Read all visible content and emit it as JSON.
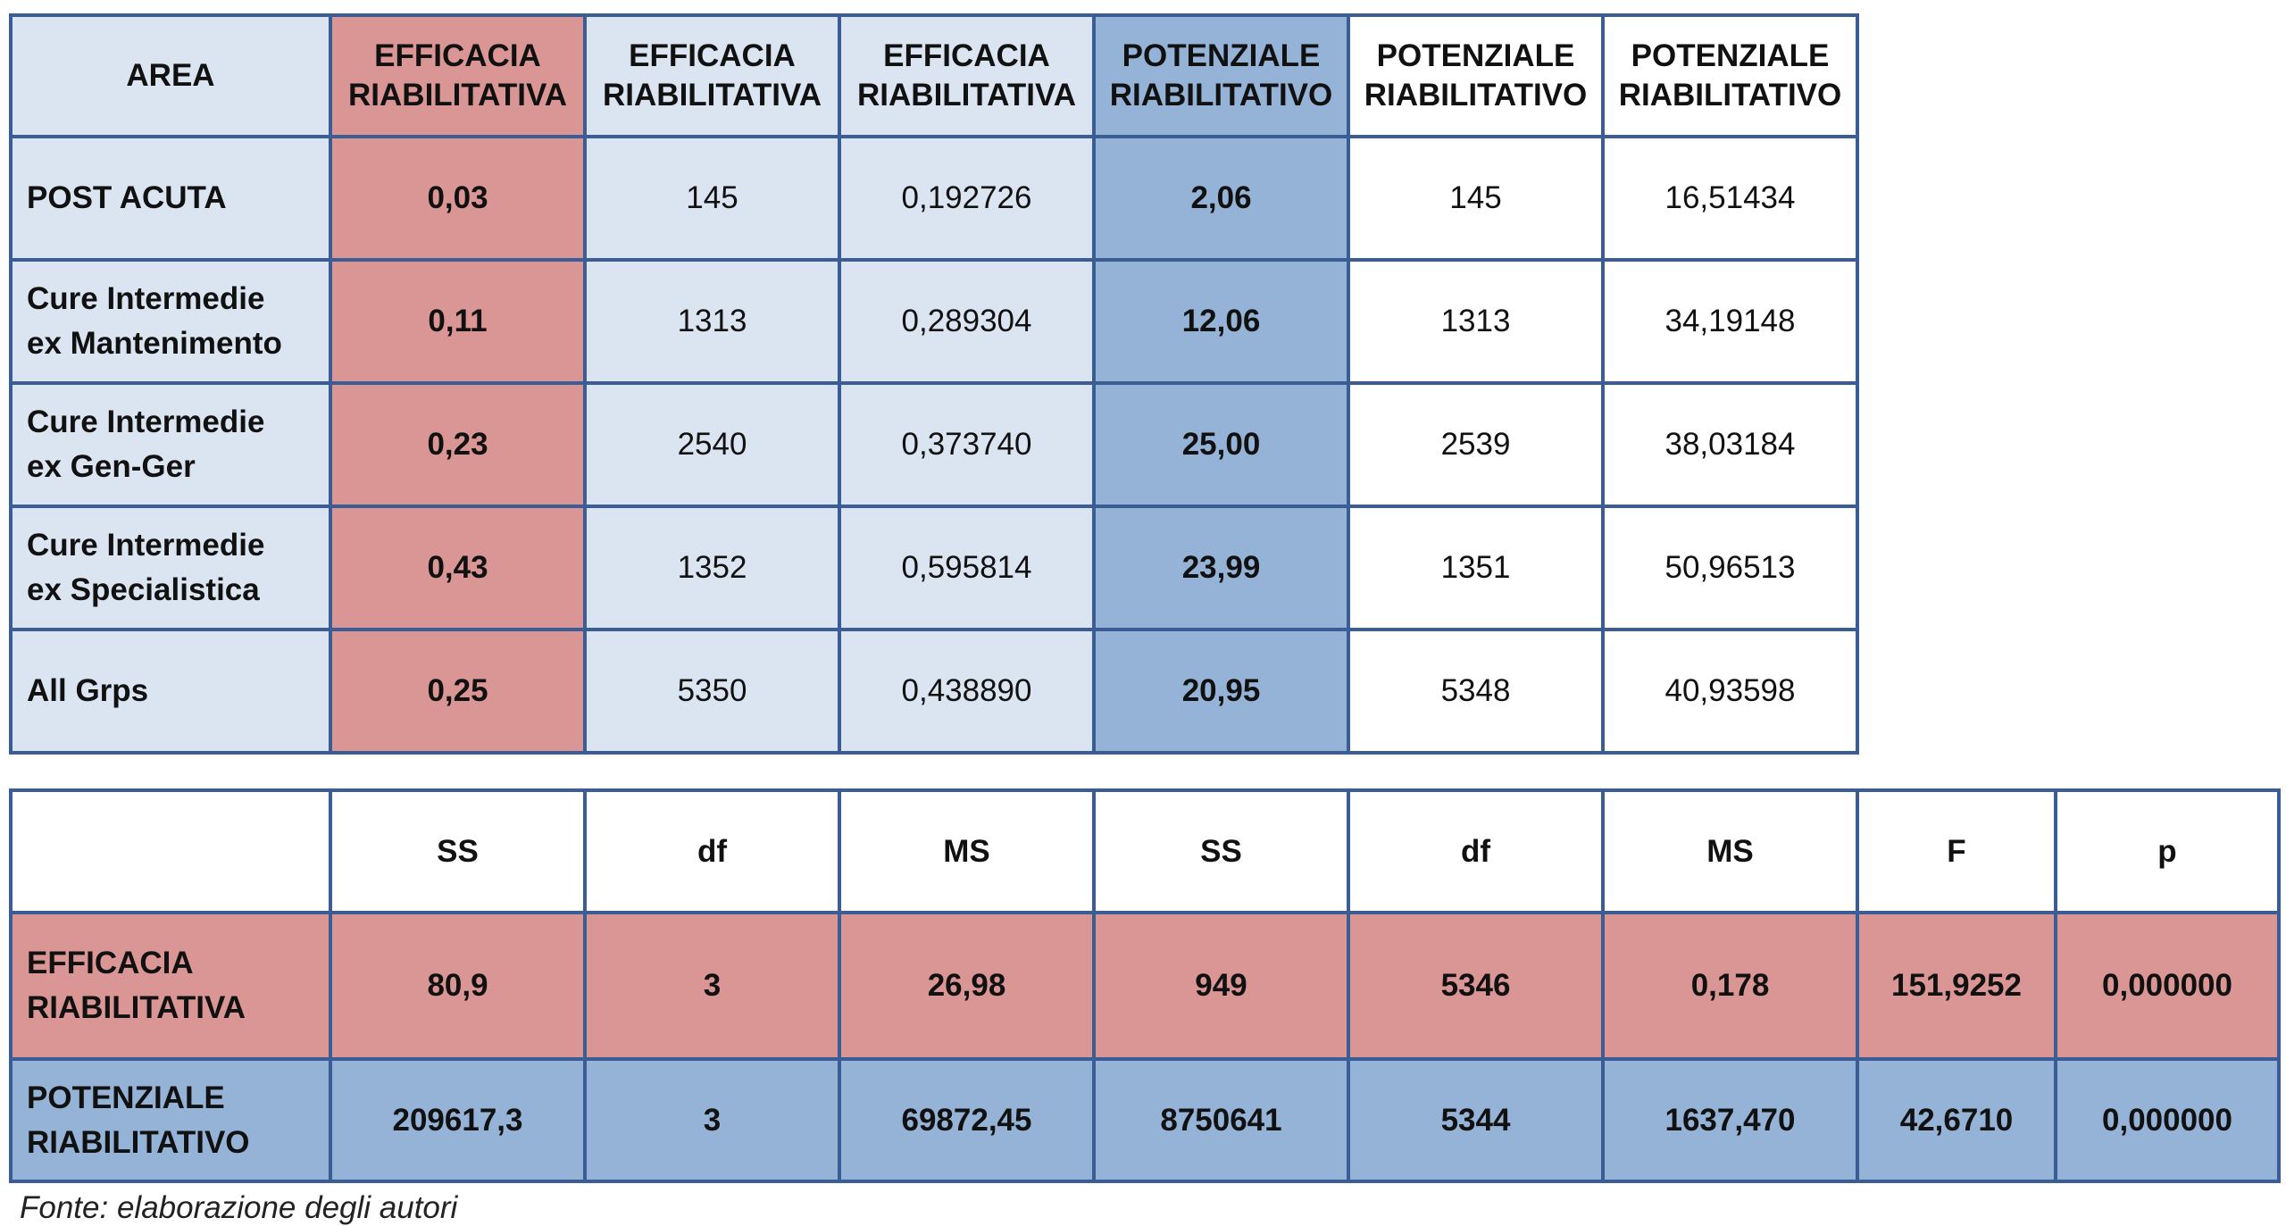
{
  "table1": {
    "headers": [
      "AREA",
      "EFFICACIA\nRIABILITATIVA",
      "EFFICACIA\nRIABILITATIVA",
      "EFFICACIA\nRIABILITATIVA",
      "POTENZIALE\nRIABILITATIVO",
      "POTENZIALE\nRIABILITATIVO",
      "POTENZIALE\nRIABILITATIVO"
    ],
    "rows": [
      [
        "POST ACUTA",
        "0,03",
        "145",
        "0,192726",
        "2,06",
        "145",
        "16,51434"
      ],
      [
        "Cure Intermedie\nex Mantenimento",
        "0,11",
        "1313",
        "0,289304",
        "12,06",
        "1313",
        "34,19148"
      ],
      [
        "Cure Intermedie\nex Gen-Ger",
        "0,23",
        "2540",
        "0,373740",
        "25,00",
        "2539",
        "38,03184"
      ],
      [
        "Cure Intermedie\nex Specialistica",
        "0,43",
        "1352",
        "0,595814",
        "23,99",
        "1351",
        "50,96513"
      ],
      [
        "All Grps",
        "0,25",
        "5350",
        "0,438890",
        "20,95",
        "5348",
        "40,93598"
      ]
    ]
  },
  "table2": {
    "headers": [
      "",
      "SS",
      "df",
      "MS",
      "SS",
      "df",
      "MS",
      "F",
      "p"
    ],
    "rows": [
      [
        "EFFICACIA\nRIABILITATIVA",
        "80,9",
        "3",
        "26,98",
        "949",
        "5346",
        "0,178",
        "151,9252",
        "0,000000"
      ],
      [
        "POTENZIALE\nRIABILITATIVO",
        "209617,3",
        "3",
        "69872,45",
        "8750641",
        "5344",
        "1637,470",
        "42,6710",
        "0,000000"
      ]
    ]
  },
  "source_note": "Fonte: elaborazione degli autori",
  "colors": {
    "border": "#3a5d96",
    "light_blue": "#dbe5f1",
    "red": "#da9694",
    "blue": "#95b3d7"
  }
}
